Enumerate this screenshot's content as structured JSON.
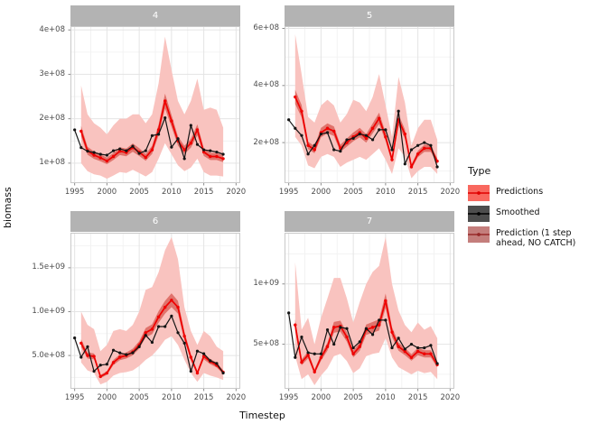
{
  "chart_data": {
    "type": "line",
    "title": "",
    "xlabel": "Timestep",
    "ylabel": "biomass",
    "facet_labels": [
      "4",
      "5",
      "6",
      "7"
    ],
    "grid": true,
    "legend_position": "right",
    "x_domain": [
      1994.35,
      2020.65
    ],
    "x_ticks": {
      "values": [
        1995,
        2000,
        2005,
        2010,
        2015,
        2020
      ],
      "labels": [
        "1995",
        "2000",
        "2005",
        "2010",
        "2015",
        "2020"
      ]
    },
    "years_smoothed": [
      1995,
      1996,
      1997,
      1998,
      1999,
      2000,
      2001,
      2002,
      2003,
      2004,
      2005,
      2006,
      2007,
      2008,
      2009,
      2010,
      2011,
      2012,
      2013,
      2014,
      2015,
      2016,
      2017,
      2018
    ],
    "years_predictions": [
      1996,
      1997,
      1998,
      1999,
      2000,
      2001,
      2002,
      2003,
      2004,
      2005,
      2006,
      2007,
      2008,
      2009,
      2010,
      2011,
      2012,
      2013,
      2014,
      2015,
      2016,
      2017,
      2018
    ],
    "nocatch_band_fraction": 0.07,
    "legend": {
      "title": "Type",
      "entries": [
        {
          "label": "Predictions",
          "key_fill": "#F9685F",
          "key_line": "#E00000"
        },
        {
          "label": "Smoothed",
          "key_fill": "#4D4D4D",
          "key_line": "#000000"
        },
        {
          "label": "Prediction (1 step ahead, NO CATCH)",
          "key_fill": "#C47E7C",
          "key_line": "#962828"
        }
      ]
    },
    "colors": {
      "ribbon": "#F9C3BF",
      "nocatch_band": "#E0736C",
      "predictions_line": "#EF0000",
      "smoothed_line": "#141414",
      "strip_fill": "#B3B3B3",
      "strip_text": "#FFFFFF",
      "panel_border": "#C9C9C9",
      "grid_major": "#E4E4E4",
      "grid_minor": "#F2F2F2",
      "tick_mark": "#8A8A8A",
      "tick_label": "#4D4D4D"
    },
    "panels": [
      {
        "label": "4",
        "y_domain": [
          55000000.0,
          408500000.0
        ],
        "y_ticks": {
          "values": [
            100000000.0,
            200000000.0,
            300000000.0,
            400000000.0
          ],
          "labels": [
            "1e+08",
            "2e+08",
            "3e+08",
            "4e+08"
          ]
        },
        "smoothed": [
          175000000.0,
          135000000.0,
          127000000.0,
          124000000.0,
          120000000.0,
          118000000.0,
          128000000.0,
          132000000.0,
          128000000.0,
          138000000.0,
          122000000.0,
          128000000.0,
          162000000.0,
          165000000.0,
          202000000.0,
          136000000.0,
          155000000.0,
          110000000.0,
          185000000.0,
          142000000.0,
          130000000.0,
          128000000.0,
          125000000.0,
          120000000.0
        ],
        "predictions": [
          172000000.0,
          128000000.0,
          118000000.0,
          112000000.0,
          105000000.0,
          115000000.0,
          127000000.0,
          124000000.0,
          135000000.0,
          125000000.0,
          113000000.0,
          130000000.0,
          175000000.0,
          240000000.0,
          195000000.0,
          150000000.0,
          130000000.0,
          145000000.0,
          175000000.0,
          125000000.0,
          115000000.0,
          115000000.0,
          110000000.0
        ],
        "ribbon_upper": [
          275000000.0,
          210000000.0,
          190000000.0,
          180000000.0,
          165000000.0,
          185000000.0,
          200000000.0,
          200000000.0,
          210000000.0,
          210000000.0,
          190000000.0,
          210000000.0,
          280000000.0,
          385000000.0,
          310000000.0,
          240000000.0,
          210000000.0,
          240000000.0,
          290000000.0,
          220000000.0,
          225000000.0,
          220000000.0,
          180000000.0
        ],
        "ribbon_lower": [
          100000000.0,
          82000000.0,
          75000000.0,
          72000000.0,
          65000000.0,
          72000000.0,
          80000000.0,
          78000000.0,
          85000000.0,
          78000000.0,
          70000000.0,
          80000000.0,
          110000000.0,
          145000000.0,
          120000000.0,
          95000000.0,
          82000000.0,
          90000000.0,
          110000000.0,
          80000000.0,
          72000000.0,
          72000000.0,
          70000000.0
        ]
      },
      {
        "label": "5",
        "y_domain": [
          58000000.0,
          608000000.0
        ],
        "y_ticks": {
          "values": [
            200000000.0,
            400000000.0,
            600000000.0
          ],
          "labels": [
            "2e+08",
            "4e+08",
            "6e+08"
          ]
        },
        "smoothed": [
          280000000.0,
          250000000.0,
          225000000.0,
          160000000.0,
          190000000.0,
          230000000.0,
          235000000.0,
          175000000.0,
          170000000.0,
          210000000.0,
          215000000.0,
          230000000.0,
          225000000.0,
          210000000.0,
          245000000.0,
          245000000.0,
          175000000.0,
          310000000.0,
          125000000.0,
          175000000.0,
          190000000.0,
          200000000.0,
          190000000.0,
          115000000.0
        ],
        "predictions": [
          360000000.0,
          310000000.0,
          190000000.0,
          175000000.0,
          235000000.0,
          250000000.0,
          240000000.0,
          180000000.0,
          200000000.0,
          220000000.0,
          235000000.0,
          215000000.0,
          250000000.0,
          285000000.0,
          220000000.0,
          140000000.0,
          280000000.0,
          230000000.0,
          115000000.0,
          160000000.0,
          180000000.0,
          180000000.0,
          135000000.0
        ],
        "ribbon_upper": [
          580000000.0,
          440000000.0,
          290000000.0,
          270000000.0,
          330000000.0,
          350000000.0,
          330000000.0,
          270000000.0,
          300000000.0,
          350000000.0,
          340000000.0,
          310000000.0,
          360000000.0,
          440000000.0,
          330000000.0,
          220000000.0,
          430000000.0,
          340000000.0,
          190000000.0,
          250000000.0,
          280000000.0,
          280000000.0,
          210000000.0
        ],
        "ribbon_lower": [
          220000000.0,
          190000000.0,
          120000000.0,
          110000000.0,
          150000000.0,
          160000000.0,
          150000000.0,
          115000000.0,
          130000000.0,
          140000000.0,
          150000000.0,
          140000000.0,
          160000000.0,
          180000000.0,
          140000000.0,
          90000000.0,
          180000000.0,
          150000000.0,
          75000000.0,
          100000000.0,
          115000000.0,
          115000000.0,
          90000000.0
        ]
      },
      {
        "label": "6",
        "y_domain": [
          120000000.0,
          1900000000.0
        ],
        "y_ticks": {
          "values": [
            500000000.0,
            1000000000.0,
            1500000000.0
          ],
          "labels": [
            "5.0e+08",
            "1.0e+09",
            "1.5e+09"
          ]
        },
        "smoothed": [
          700000000.0,
          480000000.0,
          600000000.0,
          320000000.0,
          390000000.0,
          400000000.0,
          560000000.0,
          530000000.0,
          510000000.0,
          530000000.0,
          600000000.0,
          730000000.0,
          650000000.0,
          830000000.0,
          830000000.0,
          950000000.0,
          760000000.0,
          640000000.0,
          320000000.0,
          550000000.0,
          520000000.0,
          440000000.0,
          410000000.0,
          300000000.0
        ],
        "predictions": [
          640000000.0,
          500000000.0,
          490000000.0,
          260000000.0,
          300000000.0,
          420000000.0,
          480000000.0,
          500000000.0,
          540000000.0,
          620000000.0,
          760000000.0,
          800000000.0,
          940000000.0,
          1050000000.0,
          1130000000.0,
          1050000000.0,
          720000000.0,
          480000000.0,
          300000000.0,
          490000000.0,
          430000000.0,
          390000000.0,
          310000000.0
        ],
        "ribbon_upper": [
          1000000000.0,
          850000000.0,
          800000000.0,
          550000000.0,
          620000000.0,
          780000000.0,
          800000000.0,
          780000000.0,
          850000000.0,
          1000000000.0,
          1250000000.0,
          1280000000.0,
          1450000000.0,
          1700000000.0,
          1850000000.0,
          1600000000.0,
          1050000000.0,
          780000000.0,
          620000000.0,
          780000000.0,
          720000000.0,
          600000000.0,
          550000000.0
        ],
        "ribbon_lower": [
          420000000.0,
          330000000.0,
          300000000.0,
          170000000.0,
          200000000.0,
          270000000.0,
          300000000.0,
          310000000.0,
          330000000.0,
          380000000.0,
          450000000.0,
          500000000.0,
          580000000.0,
          680000000.0,
          720000000.0,
          620000000.0,
          450000000.0,
          300000000.0,
          200000000.0,
          300000000.0,
          270000000.0,
          250000000.0,
          220000000.0
        ]
      },
      {
        "label": "7",
        "y_domain": [
          130000000.0,
          1425000000.0
        ],
        "y_ticks": {
          "values": [
            500000000.0,
            1000000000.0
          ],
          "labels": [
            "5e+08",
            "1e+09"
          ]
        },
        "smoothed": [
          760000000.0,
          390000000.0,
          560000000.0,
          430000000.0,
          420000000.0,
          420000000.0,
          620000000.0,
          500000000.0,
          640000000.0,
          630000000.0,
          470000000.0,
          520000000.0,
          630000000.0,
          580000000.0,
          700000000.0,
          700000000.0,
          470000000.0,
          550000000.0,
          460000000.0,
          500000000.0,
          470000000.0,
          470000000.0,
          490000000.0,
          340000000.0
        ],
        "predictions": [
          660000000.0,
          350000000.0,
          410000000.0,
          270000000.0,
          390000000.0,
          480000000.0,
          640000000.0,
          650000000.0,
          560000000.0,
          420000000.0,
          480000000.0,
          620000000.0,
          640000000.0,
          660000000.0,
          860000000.0,
          600000000.0,
          480000000.0,
          440000000.0,
          390000000.0,
          440000000.0,
          420000000.0,
          420000000.0,
          330000000.0
        ],
        "ribbon_upper": [
          1180000000.0,
          620000000.0,
          720000000.0,
          500000000.0,
          720000000.0,
          880000000.0,
          1050000000.0,
          1050000000.0,
          880000000.0,
          680000000.0,
          850000000.0,
          1000000000.0,
          1100000000.0,
          1150000000.0,
          1390000000.0,
          1000000000.0,
          780000000.0,
          660000000.0,
          600000000.0,
          680000000.0,
          620000000.0,
          650000000.0,
          550000000.0
        ],
        "ribbon_lower": [
          400000000.0,
          210000000.0,
          250000000.0,
          160000000.0,
          240000000.0,
          300000000.0,
          400000000.0,
          420000000.0,
          360000000.0,
          260000000.0,
          300000000.0,
          400000000.0,
          420000000.0,
          430000000.0,
          550000000.0,
          390000000.0,
          310000000.0,
          280000000.0,
          250000000.0,
          280000000.0,
          260000000.0,
          270000000.0,
          210000000.0
        ]
      }
    ]
  }
}
